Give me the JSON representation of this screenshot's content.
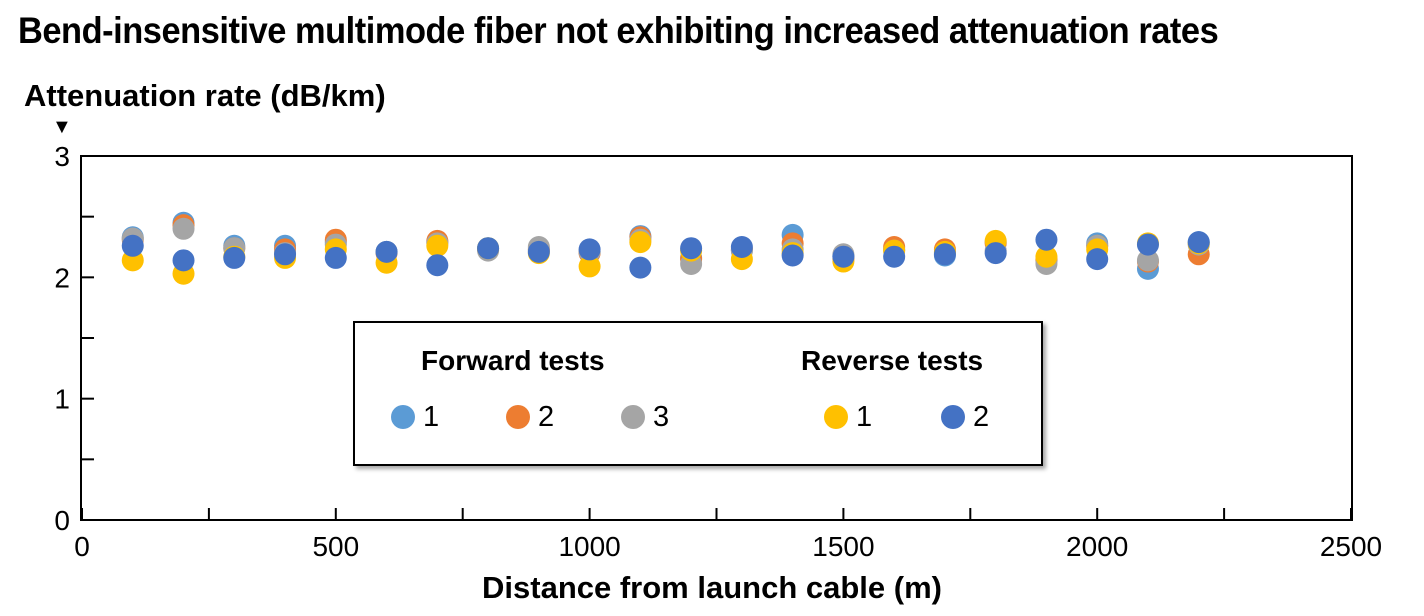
{
  "chart_data": {
    "type": "scatter",
    "title": "Bend-insensitive multimode fiber not exhibiting increased attenuation rates",
    "xlabel": "Distance from launch cable (m)",
    "ylabel": "Attenuation rate (dB/km)",
    "xlim": [
      0,
      2500
    ],
    "ylim": [
      0,
      3
    ],
    "xticks": [
      "0",
      "500",
      "1000",
      "1500",
      "2000",
      "2500"
    ],
    "yticks": [
      "0",
      "1",
      "2",
      "3"
    ],
    "grid": false,
    "legend": {
      "position": "center-bottom",
      "groups": [
        {
          "title": "Forward tests",
          "entries": [
            "1",
            "2",
            "3"
          ]
        },
        {
          "title": "Reverse tests",
          "entries": [
            "1",
            "2"
          ]
        }
      ]
    },
    "x": [
      100,
      200,
      300,
      400,
      500,
      600,
      700,
      800,
      900,
      1000,
      1100,
      1200,
      1300,
      1400,
      1500,
      1600,
      1700,
      1800,
      1900,
      2000,
      2100,
      2200
    ],
    "series": [
      {
        "group": "Forward tests",
        "name": "1",
        "color": "#5B9BD5",
        "values": [
          2.33,
          2.45,
          2.26,
          2.26,
          2.29,
          2.21,
          2.29,
          2.24,
          2.22,
          2.21,
          2.34,
          2.16,
          2.22,
          2.35,
          2.17,
          2.23,
          2.18,
          2.29,
          2.14,
          2.28,
          2.07,
          2.29
        ]
      },
      {
        "group": "Forward tests",
        "name": "2",
        "color": "#ED7D31",
        "values": [
          2.31,
          2.43,
          2.24,
          2.23,
          2.31,
          2.2,
          2.3,
          2.23,
          2.23,
          2.2,
          2.33,
          2.15,
          2.23,
          2.28,
          2.15,
          2.25,
          2.23,
          2.28,
          2.15,
          2.26,
          2.13,
          2.19
        ]
      },
      {
        "group": "Forward tests",
        "name": "3",
        "color": "#A5A5A5",
        "values": [
          2.32,
          2.4,
          2.24,
          2.2,
          2.27,
          2.21,
          2.28,
          2.22,
          2.25,
          2.21,
          2.31,
          2.11,
          2.22,
          2.23,
          2.19,
          2.22,
          2.2,
          2.22,
          2.11,
          2.26,
          2.14,
          2.27
        ]
      },
      {
        "group": "Reverse tests",
        "name": "1",
        "color": "#FFC000",
        "values": [
          2.14,
          2.03,
          2.17,
          2.16,
          2.23,
          2.12,
          2.26,
          2.24,
          2.2,
          2.09,
          2.29,
          2.22,
          2.15,
          2.2,
          2.13,
          2.22,
          2.21,
          2.3,
          2.17,
          2.23,
          2.28,
          2.28
        ]
      },
      {
        "group": "Reverse tests",
        "name": "2",
        "color": "#4472C4",
        "values": [
          2.26,
          2.14,
          2.16,
          2.19,
          2.16,
          2.21,
          2.1,
          2.24,
          2.21,
          2.23,
          2.08,
          2.24,
          2.25,
          2.18,
          2.17,
          2.17,
          2.19,
          2.2,
          2.31,
          2.15,
          2.27,
          2.29
        ]
      }
    ]
  }
}
